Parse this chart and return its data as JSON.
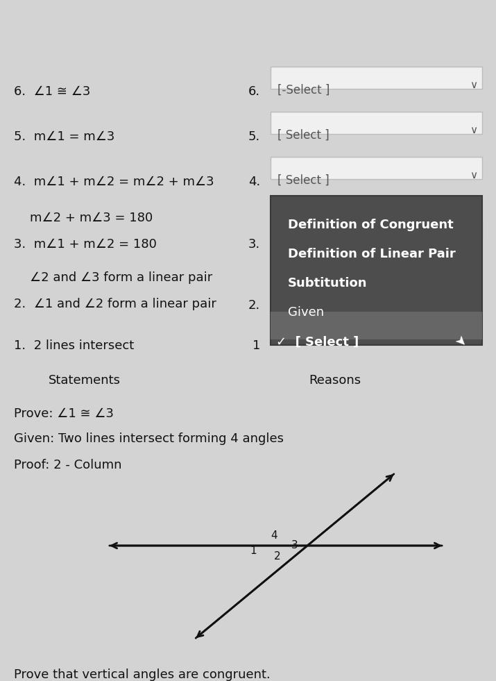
{
  "bg_color": "#d3d3d3",
  "title_text": "Prove that vertical angles are congruent.",
  "proof_label": "Proof: 2 - Column",
  "given_label": "Given: Two lines intersect forming 4 angles",
  "prove_label": "Prove: ∠1 ≅ ∠3",
  "col1_header": "Statements",
  "col2_header": "Reasons",
  "s1": "1.  2 lines intersect",
  "s2a": "2.  ∠1 and ∠2 form a linear pair",
  "s2b": "    ∠2 and ∠3 form a linear pair",
  "s3a": "3.  m∠1 + m∠2 = 180",
  "s3b": "    m∠2 + m∠3 = 180",
  "s4": "4.  m∠1 + m∠2 = m∠2 + m∠3",
  "s5": "5.  m∠1 = m∠3",
  "s6": "6.  ∠1 ≅ ∠3",
  "drop_open_item0": "✓  [ Select ]",
  "drop_open_item1": "Given",
  "drop_open_item2": "Subtitution",
  "drop_open_item3": "Definition of Linear Pair",
  "drop_open_item4": "Definition of Congruent",
  "drop_closed_label": "[ Select ]",
  "drop_closed_label6": "[-Select ]"
}
